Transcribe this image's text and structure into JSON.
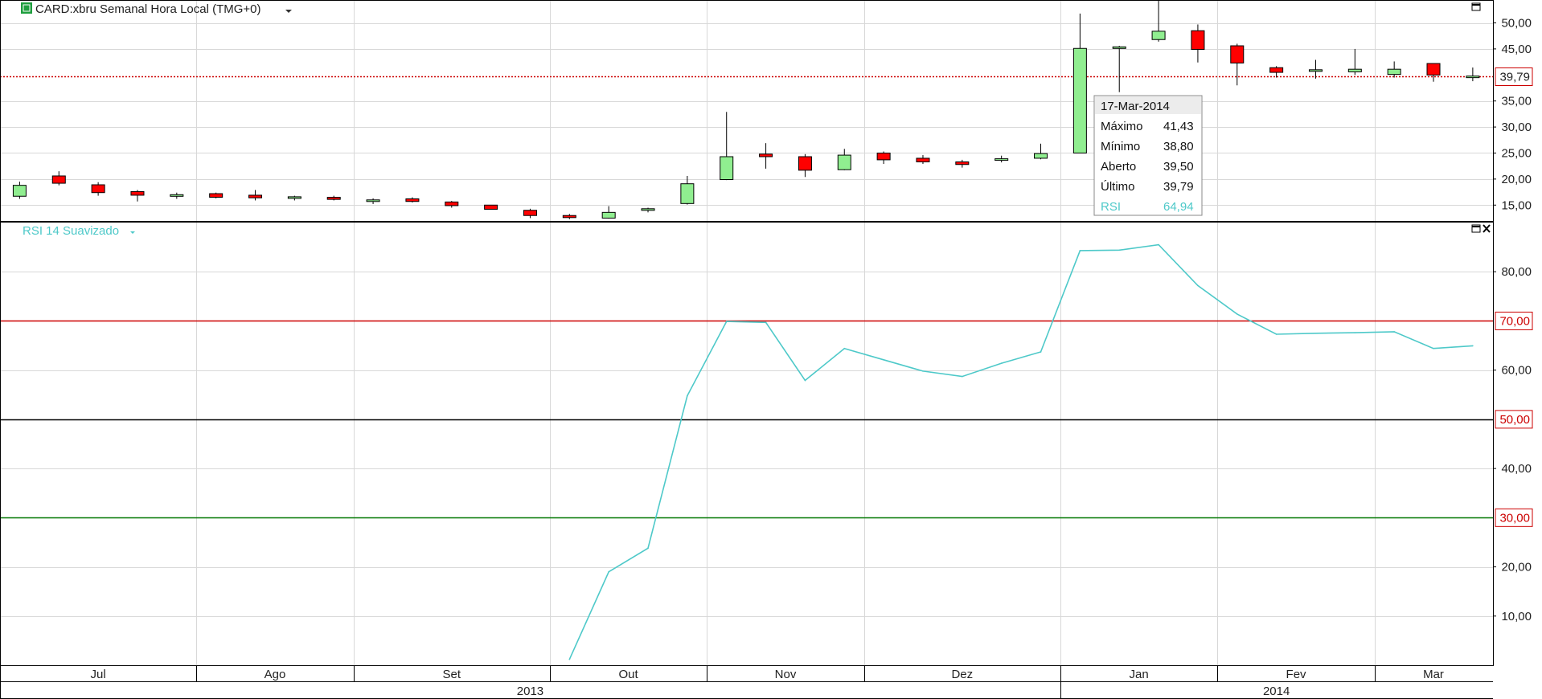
{
  "header": {
    "title": "CARD:xbru Semanal Hora Local (TMG+0)",
    "rsi_title": "RSI 14 Suavizado"
  },
  "colors": {
    "up": "#90ee90",
    "down": "#ff0000",
    "wick": "#000000",
    "grid": "#d8d8d8",
    "rsi_line": "#4ec9c9",
    "overbought": "#cc0000",
    "midline": "#000000",
    "oversold": "#007700",
    "last_price_line": "#cc0000"
  },
  "tooltip": {
    "date": "17-Mar-2014",
    "rows": [
      {
        "label": "Máximo",
        "value": "41,43"
      },
      {
        "label": "Mínimo",
        "value": "38,80"
      },
      {
        "label": "Aberto",
        "value": "39,50"
      },
      {
        "label": "Último",
        "value": "39,79"
      },
      {
        "label": "RSI",
        "value": "64,94"
      }
    ]
  },
  "chart_data": [
    {
      "type": "candlestick",
      "title": "CARD:xbru Semanal Hora Local (TMG+0)",
      "x_months": [
        {
          "label": "Jul",
          "start": 0,
          "end": 5
        },
        {
          "label": "Ago",
          "start": 5,
          "end": 9
        },
        {
          "label": "Set",
          "start": 9,
          "end": 14
        },
        {
          "label": "Out",
          "start": 14,
          "end": 18
        },
        {
          "label": "Nov",
          "start": 18,
          "end": 22
        },
        {
          "label": "Dez",
          "start": 22,
          "end": 27
        },
        {
          "label": "Jan",
          "start": 27,
          "end": 31
        },
        {
          "label": "Fev",
          "start": 31,
          "end": 35
        },
        {
          "label": "Mar",
          "start": 35,
          "end": 38
        }
      ],
      "x_years": [
        {
          "label": "2013",
          "start": 0,
          "end": 27
        },
        {
          "label": "2014",
          "start": 27,
          "end": 38
        }
      ],
      "y_ticks": [
        {
          "v": 15,
          "label": "15,00"
        },
        {
          "v": 20,
          "label": "20,00"
        },
        {
          "v": 25,
          "label": "25,00"
        },
        {
          "v": 30,
          "label": "30,00"
        },
        {
          "v": 35,
          "label": "35,00"
        },
        {
          "v": 45,
          "label": "45,00"
        },
        {
          "v": 50,
          "label": "50,00"
        }
      ],
      "ylim": [
        11.8,
        54.4
      ],
      "last_price": 39.79,
      "last_price_label": "39,79",
      "candles": [
        {
          "o": 16.7,
          "h": 19.5,
          "l": 16.2,
          "c": 18.8
        },
        {
          "o": 20.6,
          "h": 21.5,
          "l": 18.8,
          "c": 19.2
        },
        {
          "o": 18.9,
          "h": 19.4,
          "l": 16.8,
          "c": 17.4
        },
        {
          "o": 17.6,
          "h": 17.9,
          "l": 15.7,
          "c": 16.9
        },
        {
          "o": 16.7,
          "h": 17.4,
          "l": 16.2,
          "c": 17.0
        },
        {
          "o": 17.2,
          "h": 17.4,
          "l": 16.3,
          "c": 16.5
        },
        {
          "o": 16.9,
          "h": 17.9,
          "l": 15.9,
          "c": 16.4
        },
        {
          "o": 16.3,
          "h": 16.8,
          "l": 15.9,
          "c": 16.6
        },
        {
          "o": 16.5,
          "h": 16.8,
          "l": 15.9,
          "c": 16.1
        },
        {
          "o": 15.7,
          "h": 16.3,
          "l": 15.2,
          "c": 16.0
        },
        {
          "o": 16.2,
          "h": 16.5,
          "l": 15.5,
          "c": 15.7
        },
        {
          "o": 15.6,
          "h": 15.8,
          "l": 14.5,
          "c": 14.9
        },
        {
          "o": 15.0,
          "h": 15.0,
          "l": 14.2,
          "c": 14.2
        },
        {
          "o": 14.0,
          "h": 14.3,
          "l": 12.5,
          "c": 13.0
        },
        {
          "o": 13.0,
          "h": 13.3,
          "l": 12.3,
          "c": 12.6
        },
        {
          "o": 12.5,
          "h": 14.8,
          "l": 12.4,
          "c": 13.6
        },
        {
          "o": 14.0,
          "h": 14.5,
          "l": 13.6,
          "c": 14.3
        },
        {
          "o": 15.3,
          "h": 20.6,
          "l": 15.1,
          "c": 19.1
        },
        {
          "o": 19.9,
          "h": 32.9,
          "l": 19.8,
          "c": 24.3
        },
        {
          "o": 24.8,
          "h": 26.9,
          "l": 22.0,
          "c": 24.3
        },
        {
          "o": 24.3,
          "h": 24.8,
          "l": 20.4,
          "c": 21.7
        },
        {
          "o": 21.8,
          "h": 25.8,
          "l": 21.7,
          "c": 24.6
        },
        {
          "o": 25.0,
          "h": 25.3,
          "l": 22.9,
          "c": 23.7
        },
        {
          "o": 24.0,
          "h": 24.6,
          "l": 22.9,
          "c": 23.3
        },
        {
          "o": 23.3,
          "h": 23.7,
          "l": 22.2,
          "c": 22.8
        },
        {
          "o": 23.8,
          "h": 24.5,
          "l": 23.2,
          "c": 23.9
        },
        {
          "o": 24.0,
          "h": 26.8,
          "l": 23.8,
          "c": 24.9
        },
        {
          "o": 25.0,
          "h": 51.8,
          "l": 25.0,
          "c": 45.1
        },
        {
          "o": 45.1,
          "h": 45.6,
          "l": 36.7,
          "c": 45.4
        },
        {
          "o": 46.8,
          "h": 54.4,
          "l": 46.4,
          "c": 48.4
        },
        {
          "o": 48.5,
          "h": 49.7,
          "l": 42.4,
          "c": 44.9
        },
        {
          "o": 45.6,
          "h": 46.0,
          "l": 38.0,
          "c": 42.3
        },
        {
          "o": 41.4,
          "h": 41.7,
          "l": 39.5,
          "c": 40.5
        },
        {
          "o": 40.7,
          "h": 42.9,
          "l": 39.3,
          "c": 41.0
        },
        {
          "o": 40.6,
          "h": 45.0,
          "l": 40.0,
          "c": 41.1
        },
        {
          "o": 40.1,
          "h": 42.6,
          "l": 39.5,
          "c": 41.1
        },
        {
          "o": 42.2,
          "h": 42.2,
          "l": 38.7,
          "c": 40.0
        },
        {
          "o": 39.5,
          "h": 41.43,
          "l": 38.8,
          "c": 39.79
        }
      ]
    },
    {
      "type": "line",
      "title": "RSI 14 Suavizado",
      "ylim": [
        0,
        90
      ],
      "y_ticks": [
        {
          "v": 10,
          "label": "10,00"
        },
        {
          "v": 20,
          "label": "20,00"
        },
        {
          "v": 40,
          "label": "40,00"
        },
        {
          "v": 60,
          "label": "60,00"
        },
        {
          "v": 80,
          "label": "80,00"
        }
      ],
      "levels": [
        {
          "v": 70,
          "label": "70,00",
          "kind": "overbought"
        },
        {
          "v": 50,
          "label": "50,00",
          "kind": "midline"
        },
        {
          "v": 30,
          "label": "30,00",
          "kind": "oversold"
        }
      ],
      "series": [
        {
          "x": [
            14,
            15,
            16,
            17,
            18,
            19,
            20,
            21,
            22,
            23,
            24,
            25,
            26,
            27,
            28,
            29,
            30,
            31,
            32,
            33,
            34,
            35,
            36,
            37
          ],
          "values": [
            1.2,
            19.0,
            23.8,
            54.8,
            69.9,
            69.7,
            57.9,
            64.4,
            62.1,
            59.8,
            58.7,
            61.4,
            63.7,
            84.3,
            84.4,
            85.5,
            77.2,
            71.4,
            67.3,
            67.5,
            67.6,
            67.8,
            64.4,
            64.94
          ]
        }
      ]
    }
  ]
}
